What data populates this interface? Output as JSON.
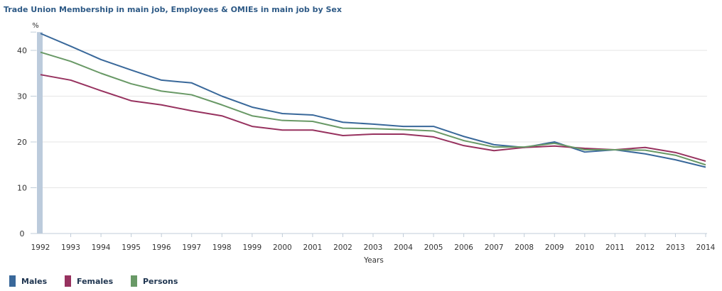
{
  "chart_data": {
    "type": "line",
    "title": "Trade Union Membership in main job, Employees & OMIEs in main job by Sex",
    "xlabel": "Years",
    "ylabel": "%",
    "ylim": [
      0,
      44
    ],
    "yticks": [
      "0",
      "10",
      "20",
      "30",
      "40"
    ],
    "categories": [
      "1992",
      "1993",
      "1994",
      "1995",
      "1996",
      "1997",
      "1998",
      "1999",
      "2000",
      "2001",
      "2002",
      "2003",
      "2004",
      "2005",
      "2006",
      "2007",
      "2008",
      "2009",
      "2010",
      "2011",
      "2012",
      "2013",
      "2014"
    ],
    "series": [
      {
        "name": "Males",
        "color": "#39689a",
        "values": [
          43.7,
          40.9,
          38.0,
          35.7,
          33.5,
          32.9,
          30.0,
          27.6,
          26.2,
          25.9,
          24.3,
          23.9,
          23.4,
          23.4,
          21.2,
          19.4,
          18.8,
          20.0,
          17.8,
          18.3,
          17.4,
          16.1,
          14.5
        ]
      },
      {
        "name": "Females",
        "color": "#97325f",
        "values": [
          34.7,
          33.5,
          31.2,
          29.0,
          28.1,
          26.8,
          25.7,
          23.4,
          22.6,
          22.6,
          21.4,
          21.7,
          21.7,
          21.1,
          19.2,
          18.1,
          18.8,
          19.1,
          18.6,
          18.3,
          18.8,
          17.7,
          15.8
        ]
      },
      {
        "name": "Persons",
        "color": "#699966",
        "values": [
          39.6,
          37.6,
          35.0,
          32.7,
          31.1,
          30.3,
          28.1,
          25.7,
          24.7,
          24.5,
          23.0,
          22.9,
          22.7,
          22.4,
          20.3,
          18.9,
          18.9,
          19.7,
          18.3,
          18.3,
          18.2,
          17.1,
          15.0
        ]
      }
    ],
    "grid": true,
    "legend": "bottom-left"
  }
}
